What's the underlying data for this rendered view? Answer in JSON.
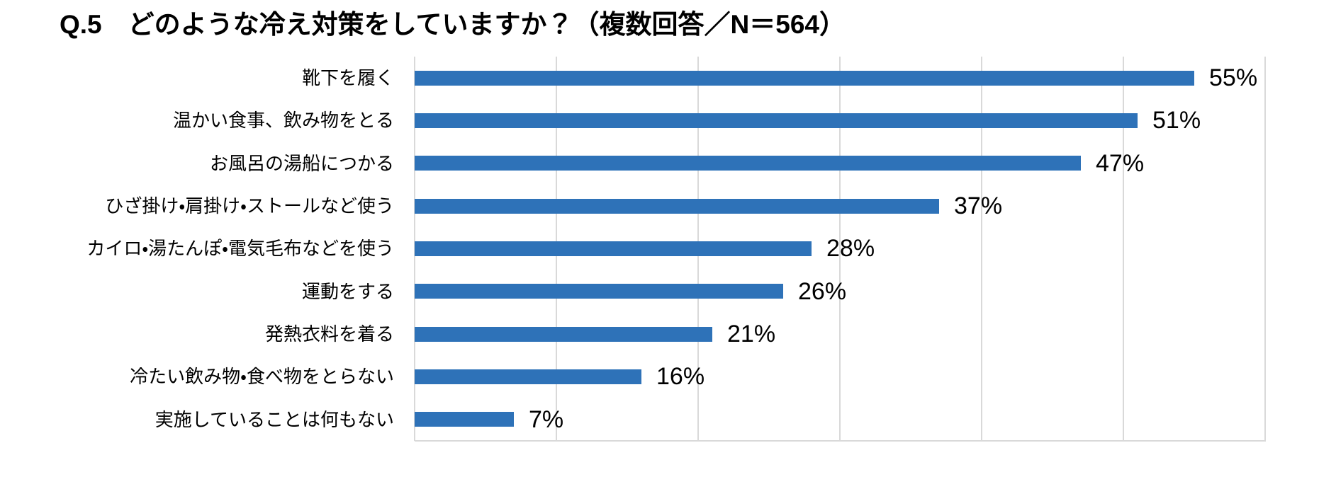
{
  "page": {
    "background": "#FFFFFF"
  },
  "title": "Q.5　どのような冷え対策をしていますか？（複数回答／N＝564）",
  "chart_data": {
    "type": "bar",
    "orientation": "horizontal",
    "title": "Q.5　どのような冷え対策をしていますか？（複数回答／N＝564）",
    "n_label": "N＝564",
    "categories": [
      "靴下を履く",
      "温かい食事、飲み物をとる",
      "お風呂の湯船につかる",
      "ひざ掛け・肩掛け・ストールなど使う",
      "カイロ・湯たんぽ・電気毛布などを使う",
      "運動をする",
      "発熱衣料を着る",
      "冷たい飲み物・食べ物をとらない",
      "実施していることは何もない"
    ],
    "values": [
      55,
      51,
      47,
      37,
      28,
      26,
      21,
      16,
      7
    ],
    "value_labels": [
      "55%",
      "51%",
      "47%",
      "37%",
      "28%",
      "26%",
      "21%",
      "16%",
      "7%"
    ],
    "unit": "%",
    "xlim": [
      0,
      60
    ],
    "grid_step": 10,
    "grid": "vertical",
    "axis_tick_labels": "none",
    "legend": "none",
    "colors": {
      "bar": "#2E72B8",
      "gridline": "#D9D9D9",
      "axis_line": "#D9D9D9",
      "text": "#000000",
      "background": "#FFFFFF"
    }
  }
}
